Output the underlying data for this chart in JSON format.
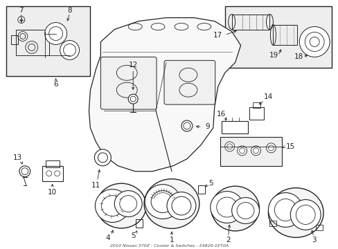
{
  "bg_color": "#ffffff",
  "line_color": "#222222",
  "box_bg": "#eeeeee",
  "fig_width": 4.89,
  "fig_height": 3.6,
  "dpi": 100
}
